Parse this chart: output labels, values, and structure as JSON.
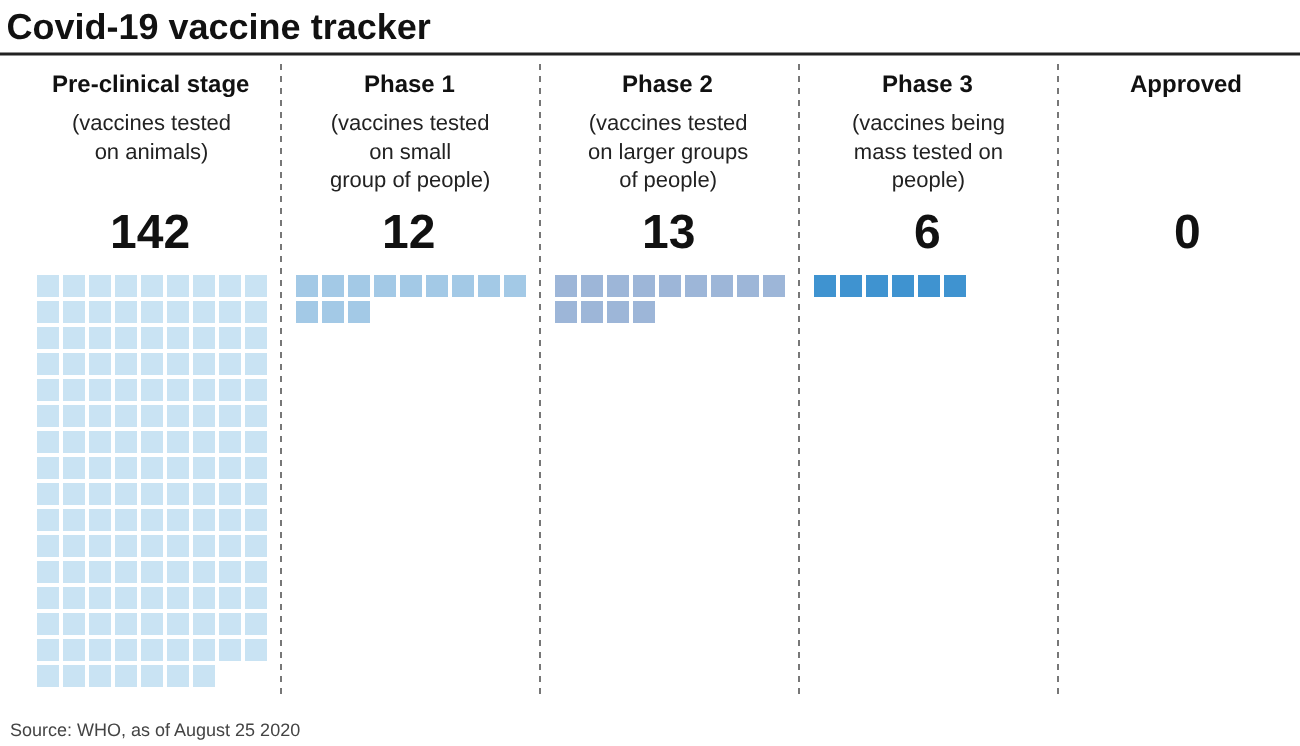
{
  "chart_data": {
    "type": "other",
    "title": "Covid-19 vaccine tracker",
    "categories": [
      "Pre-clinical stage",
      "Phase 1",
      "Phase 2",
      "Phase 3",
      "Approved"
    ],
    "values": [
      142,
      12,
      13,
      6,
      0
    ],
    "colors": [
      "#c9e3f3",
      "#a3c9e6",
      "#9db6d8",
      "#3f93d0",
      "#3f93d0"
    ],
    "data_labels": true,
    "annotations": [
      {
        "text": "(vaccines tested\non animals)",
        "x": "Pre-clinical stage"
      },
      {
        "text": "(vaccines tested\non small\ngroup of people)",
        "x": "Phase 1"
      },
      {
        "text": "(vaccines tested\non larger groups\nof people)",
        "x": "Phase 2"
      },
      {
        "text": "(vaccines being\nmass tested on\npeople)",
        "x": "Phase 3"
      },
      "Source: WHO, as of August 25 2020"
    ]
  }
}
